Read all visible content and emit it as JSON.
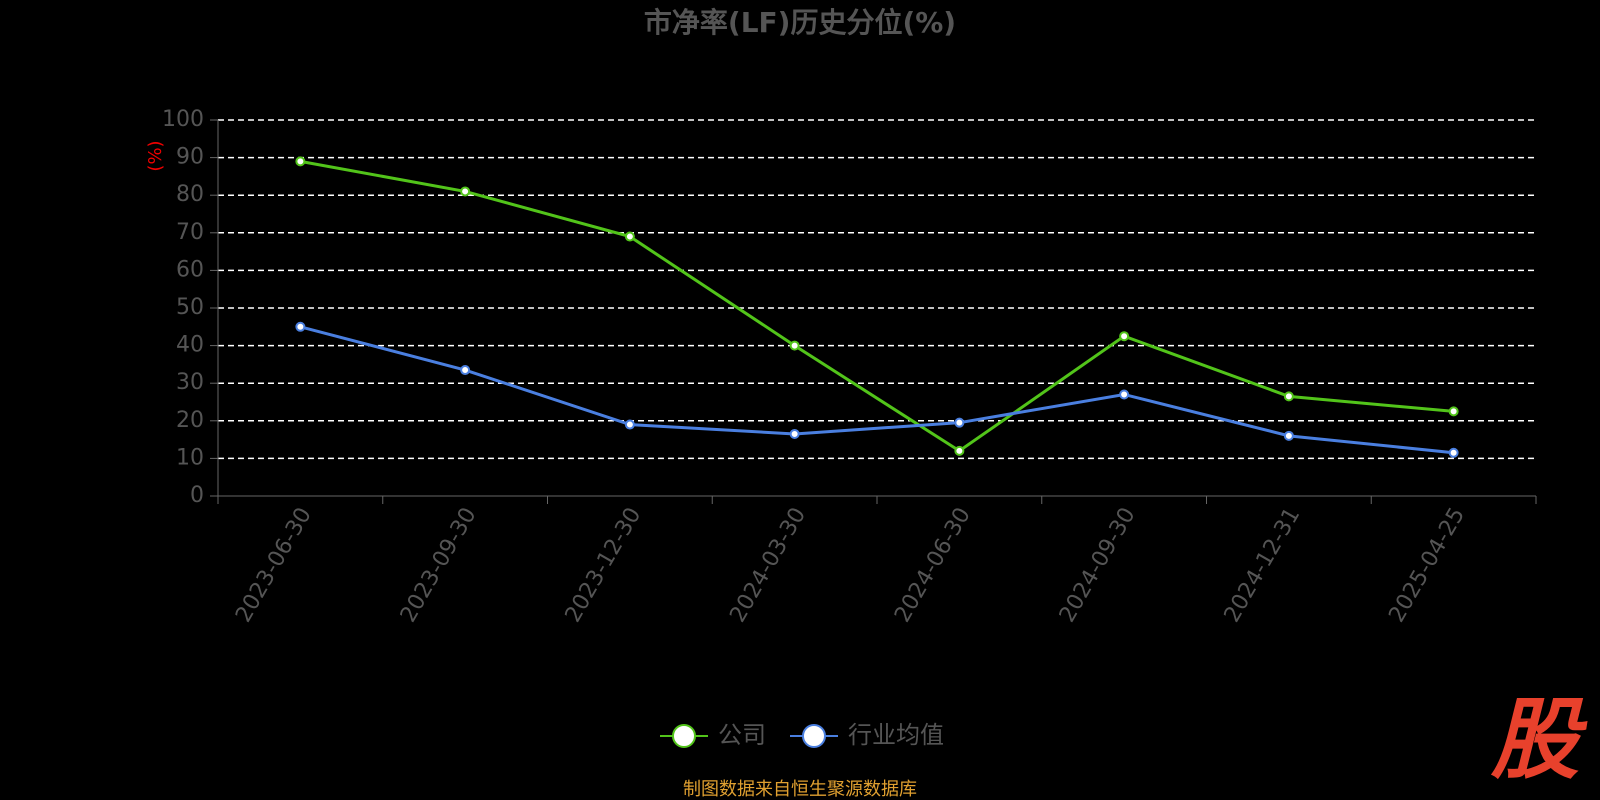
{
  "chart_data": {
    "type": "line",
    "title": "市净率(LF)历史分位(%)",
    "y_label": "(%)",
    "categories": [
      "2023-06-30",
      "2023-09-30",
      "2023-12-30",
      "2024-03-30",
      "2024-06-30",
      "2024-09-30",
      "2024-12-31",
      "2025-04-25"
    ],
    "series": [
      {
        "name": "公司",
        "color": "#52c41a",
        "values": [
          89,
          81,
          69,
          40,
          12,
          42.5,
          26.5,
          22.5
        ]
      },
      {
        "name": "行业均值",
        "color": "#4a7fe0",
        "values": [
          45,
          33.5,
          19,
          16.5,
          19.5,
          27,
          16,
          11.5
        ]
      }
    ],
    "ylim": [
      0,
      100
    ],
    "yticks": [
      0,
      10,
      20,
      30,
      40,
      50,
      60,
      70,
      80,
      90,
      100
    ],
    "grid": true,
    "source": "制图数据来自恒生聚源数据库",
    "watermark": "股"
  }
}
